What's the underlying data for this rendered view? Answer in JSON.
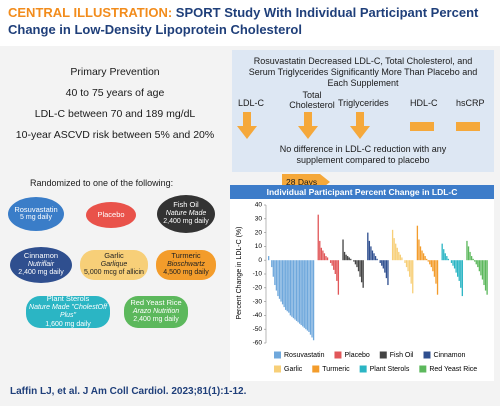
{
  "header": {
    "label": "CENTRAL ILLUSTRATION:",
    "title": "SPORT Study With Individual Participant Percent Change in Low-Density Lipoprotein Cholesterol"
  },
  "prevention": {
    "title": "Primary Prevention",
    "items": [
      "40 to 75 years of age",
      "LDL-C between 70 and 189 mg/dL",
      "10-year ASCVD risk between 5% and 20%"
    ]
  },
  "outcomes": {
    "heading": "Rosuvastatin Decreased LDL-C, Total Cholesterol, and Serum Triglycerides Significantly More Than Placebo and Each Supplement",
    "labels": [
      "LDL-C",
      "Total Cholesterol",
      "Triglycerides",
      "HDL-C",
      "hsCRP"
    ],
    "note": "No difference in LDL-C reduction with any supplement compared to placebo"
  },
  "randomization": {
    "text": "Randomized to one of the following:",
    "duration": "28 Days",
    "arms": [
      {
        "name": "Rosuvastatin",
        "dose": "5 mg daily"
      },
      {
        "name": "Placebo"
      },
      {
        "name": "Fish Oil",
        "brand": "Nature Made",
        "dose": "2,400 mg daily"
      },
      {
        "name": "Cinnamon",
        "brand": "Nutriflair",
        "dose": "2,400 mg daily"
      },
      {
        "name": "Garlic",
        "brand": "Garlique",
        "dose": "5,000 mcg of allicin"
      },
      {
        "name": "Turmeric",
        "brand": "Bioschwartz",
        "dose": "4,500 mg daily"
      },
      {
        "name": "Plant Sterols",
        "brand": "Nature Made \"CholestOff Plus\"",
        "dose": "1,600 mg daily"
      },
      {
        "name": "Red Yeast Rice",
        "brand": "Arazo Nutrition",
        "dose": "2,400 mg daily"
      }
    ]
  },
  "chart_data": {
    "type": "bar",
    "title": "Individual Participant Percent Change in LDL-C",
    "y_label": "Percent Change in LDL-C (%)",
    "ylim": [
      -60,
      40
    ],
    "yticks": [
      -60,
      -50,
      -40,
      -30,
      -20,
      -10,
      0,
      10,
      20,
      30,
      40
    ],
    "series": [
      {
        "name": "Rosuvastatin",
        "color": "#6fa8dc",
        "values": [
          3,
          0,
          -5,
          -12,
          -18,
          -22,
          -26,
          -28,
          -30,
          -32,
          -34,
          -36,
          -37,
          -38,
          -40,
          -41,
          -42,
          -43,
          -44,
          -45,
          -46,
          -47,
          -48,
          -49,
          -50,
          -51,
          -52,
          -54,
          -56,
          -58
        ]
      },
      {
        "name": "Placebo",
        "color": "#e15759",
        "values": [
          33,
          14,
          9,
          7,
          5,
          3,
          2,
          0,
          -2,
          -4,
          -7,
          -10,
          -15,
          -25
        ]
      },
      {
        "name": "Fish Oil",
        "color": "#444444",
        "values": [
          15,
          6,
          4,
          3,
          2,
          1,
          0,
          -1,
          -3,
          -5,
          -8,
          -12,
          -16,
          -20
        ]
      },
      {
        "name": "Cinnamon",
        "color": "#2f4f8f",
        "values": [
          20,
          14,
          10,
          7,
          5,
          3,
          1,
          0,
          -2,
          -4,
          -6,
          -9,
          -13,
          -18
        ]
      },
      {
        "name": "Garlic",
        "color": "#f7cf78",
        "values": [
          22,
          16,
          12,
          9,
          6,
          4,
          2,
          0,
          -2,
          -5,
          -8,
          -12,
          -17,
          -24
        ]
      },
      {
        "name": "Turmeric",
        "color": "#f39c2b",
        "values": [
          25,
          15,
          10,
          7,
          5,
          3,
          1,
          -1,
          -3,
          -5,
          -8,
          -12,
          -17,
          -25
        ]
      },
      {
        "name": "Plant Sterols",
        "color": "#2bb5c4",
        "values": [
          12,
          8,
          5,
          3,
          1,
          0,
          -2,
          -4,
          -6,
          -9,
          -12,
          -15,
          -20,
          -26
        ]
      },
      {
        "name": "Red Yeast Rice",
        "color": "#5cb85c",
        "values": [
          14,
          10,
          6,
          3,
          1,
          -1,
          -3,
          -5,
          -8,
          -11,
          -14,
          -18,
          -22,
          -25
        ]
      }
    ]
  },
  "citation": "Laffin LJ, et al. J Am Coll Cardiol. 2023;81(1):1-12."
}
